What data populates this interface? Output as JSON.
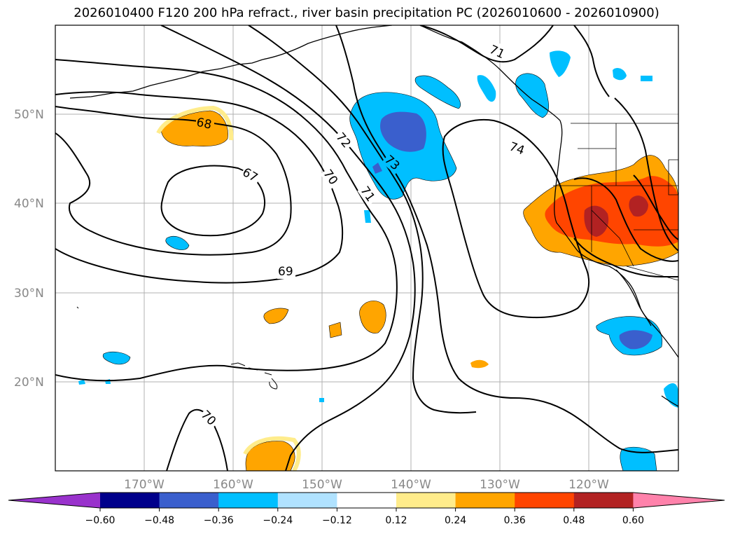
{
  "title": "2026010400 F120 200 hPa refract., river basin precipitation PC (2026010600 - 2026010900)",
  "axes": {
    "lat_labels": [
      "50°N",
      "40°N",
      "30°N",
      "20°N"
    ],
    "lon_labels": [
      "170°W",
      "160°W",
      "150°W",
      "140°W",
      "130°W",
      "120°W"
    ]
  },
  "contour_labels": [
    "71",
    "68",
    "72",
    "73",
    "74",
    "67",
    "70",
    "71",
    "69",
    "70"
  ],
  "colorbar": {
    "ticks": [
      "−0.60",
      "−0.48",
      "−0.36",
      "−0.24",
      "−0.12",
      "0.12",
      "0.24",
      "0.36",
      "0.48",
      "0.60"
    ],
    "colors": [
      "#9932cc",
      "#00008b",
      "#3a5fcd",
      "#00bfff",
      "#b0e2ff",
      "#ffffff",
      "#ffec8b",
      "#ffa500",
      "#ff4500",
      "#b22222",
      "#ff82ab"
    ]
  }
}
